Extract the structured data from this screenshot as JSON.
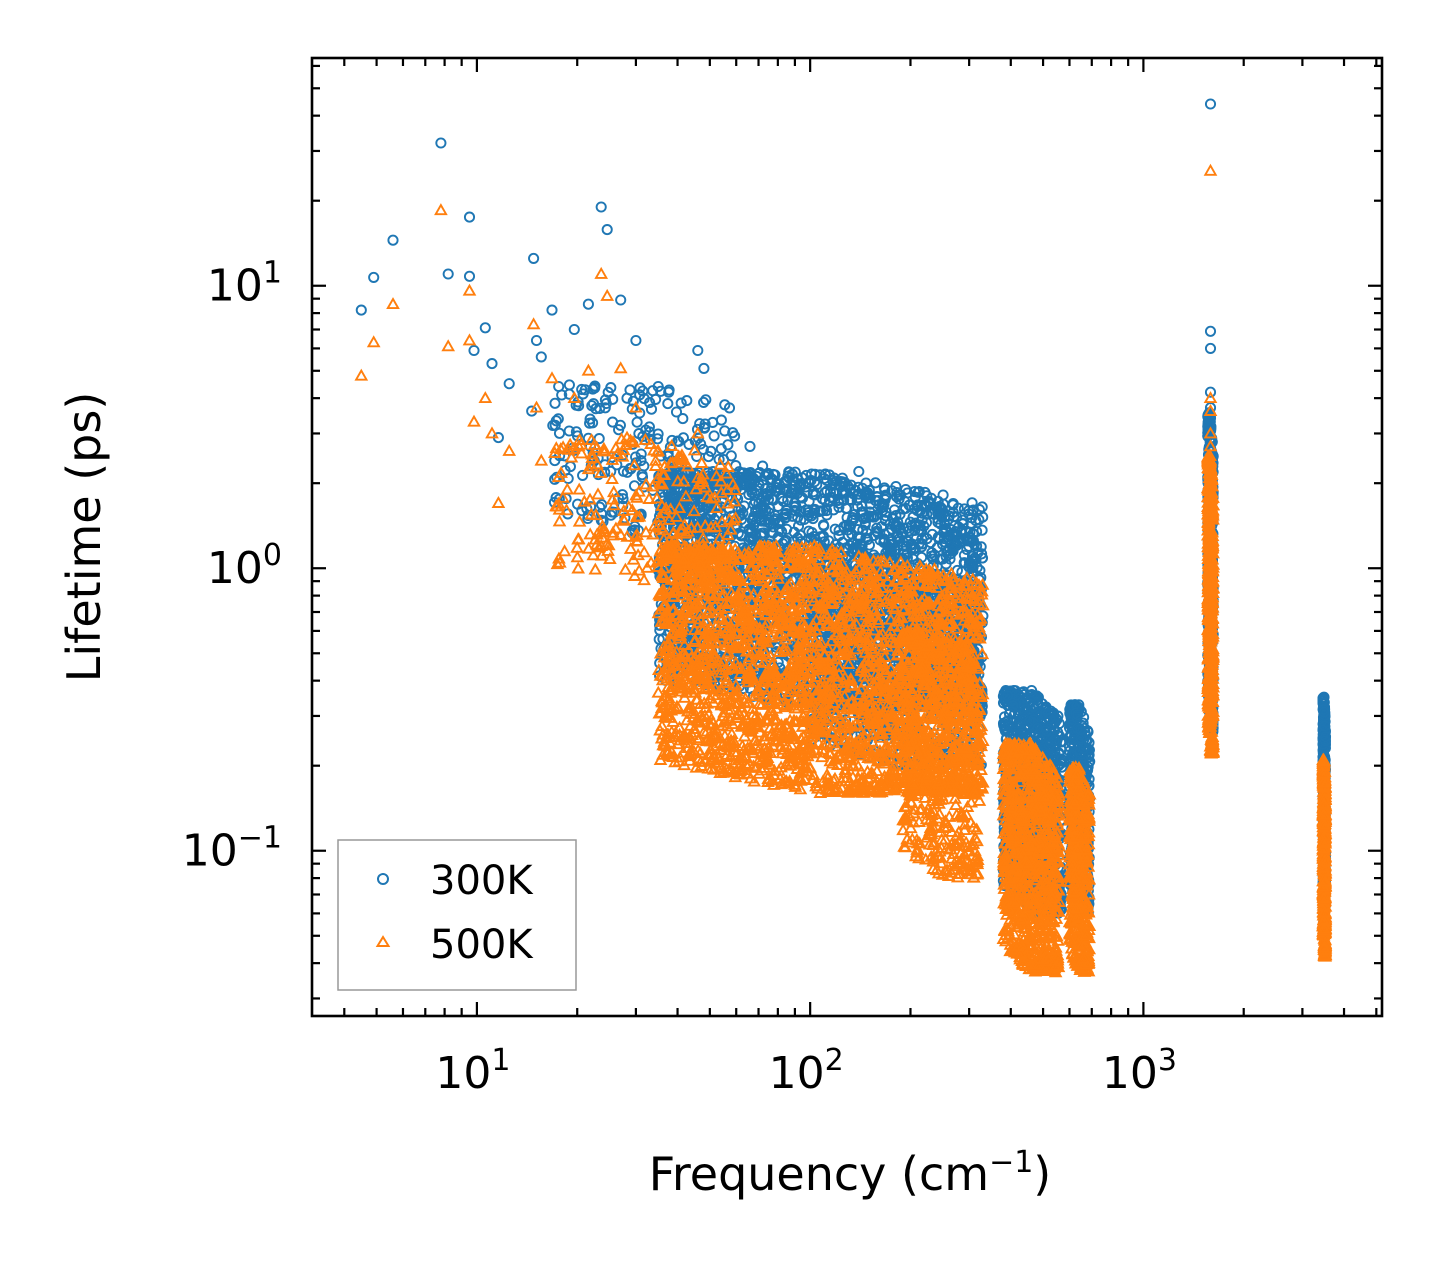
{
  "chart_data": {
    "type": "scatter",
    "xscale": "log",
    "yscale": "log",
    "xlim": [
      3.2,
      5200
    ],
    "ylim": [
      0.026,
      64
    ],
    "xlabel": "Frequency (cm⁻¹)",
    "xlabel_parts": {
      "main": "Frequency (cm",
      "sup": "−1",
      "close": ")"
    },
    "ylabel": "Lifetime (ps)",
    "x_ticks": [
      {
        "value": 10,
        "base": "10",
        "exp": "1"
      },
      {
        "value": 100,
        "base": "10",
        "exp": "2"
      },
      {
        "value": 1000,
        "base": "10",
        "exp": "3"
      }
    ],
    "y_ticks": [
      {
        "value": 0.1,
        "base": "10",
        "exp": "−1"
      },
      {
        "value": 1,
        "base": "10",
        "exp": "0"
      },
      {
        "value": 10,
        "base": "10",
        "exp": "1"
      }
    ],
    "legend_position": "bottom-left",
    "series": [
      {
        "name": "300K",
        "marker": "circle",
        "color": "#1f77b4",
        "points": [
          [
            4.5,
            8.2
          ],
          [
            4.9,
            10.7
          ],
          [
            5.6,
            14.5
          ],
          [
            7.8,
            32.0
          ],
          [
            8.2,
            11.0
          ],
          [
            9.5,
            17.5
          ],
          [
            9.5,
            10.8
          ],
          [
            9.8,
            5.9
          ],
          [
            10.6,
            7.1
          ],
          [
            11.1,
            5.3
          ],
          [
            11.6,
            2.9
          ],
          [
            12.5,
            4.5
          ],
          [
            14.8,
            12.5
          ],
          [
            14.6,
            3.6
          ],
          [
            15.1,
            6.4
          ],
          [
            15.6,
            5.6
          ],
          [
            16.8,
            8.2
          ],
          [
            16.9,
            3.2
          ],
          [
            17.6,
            4.4
          ],
          [
            18.3,
            2.5
          ],
          [
            19.6,
            7.0
          ],
          [
            21.6,
            8.6
          ],
          [
            23.6,
            19.0
          ],
          [
            24.6,
            15.8
          ],
          [
            27.0,
            8.9
          ],
          [
            30.0,
            6.4
          ],
          [
            35.0,
            4.4
          ],
          [
            46.0,
            5.9
          ],
          [
            48.0,
            5.1
          ],
          [
            58.0,
            2.5
          ],
          [
            62.0,
            1.9
          ],
          [
            66.0,
            2.7
          ],
          [
            72.0,
            2.3
          ],
          [
            85.0,
            1.6
          ],
          [
            98.0,
            1.85
          ],
          [
            112.0,
            1.6
          ],
          [
            128.0,
            1.85
          ],
          [
            140.0,
            2.2
          ],
          [
            165.0,
            1.6
          ],
          [
            182.0,
            1.4
          ],
          [
            196.0,
            1.0
          ],
          [
            205.0,
            0.82
          ],
          [
            213.0,
            0.71
          ],
          [
            232.0,
            0.88
          ],
          [
            246.0,
            0.62
          ],
          [
            270.0,
            0.52
          ],
          [
            292.0,
            0.4
          ],
          [
            312.0,
            0.31
          ],
          [
            322.0,
            0.27
          ]
        ],
        "clusters": [
          {
            "x_range": [
              17,
              60
            ],
            "y_range": [
              1.3,
              4.5
            ],
            "count": 240
          },
          {
            "x_range": [
              35,
              330
            ],
            "y_range": [
              0.32,
              2.2
            ],
            "count": 2600
          },
          {
            "x_range": [
              100,
              330
            ],
            "y_range": [
              0.2,
              1.0
            ],
            "count": 800
          },
          {
            "x_range": [
              380,
              570
            ],
            "y_range": [
              0.06,
              0.37
            ],
            "count": 900
          },
          {
            "x_range": [
              600,
              690
            ],
            "y_range": [
              0.06,
              0.33
            ],
            "count": 450
          },
          {
            "x_range": [
              1560,
              1620
            ],
            "y_range": [
              0.26,
              3.6
            ],
            "count": 500
          },
          {
            "x_range": [
              3460,
              3520
            ],
            "y_range": [
              0.05,
              0.35
            ],
            "count": 450
          }
        ],
        "column_peaks": [
          {
            "x": 1590,
            "values": [
              44.0,
              6.9,
              6.0,
              4.2,
              3.7,
              3.4
            ]
          }
        ]
      },
      {
        "name": "500K",
        "marker": "triangle",
        "color": "#ff7f0e",
        "points": [
          [
            4.5,
            4.8
          ],
          [
            4.9,
            6.3
          ],
          [
            5.6,
            8.6
          ],
          [
            7.8,
            18.5
          ],
          [
            8.2,
            6.1
          ],
          [
            9.5,
            6.4
          ],
          [
            9.5,
            9.6
          ],
          [
            9.8,
            3.3
          ],
          [
            10.6,
            4.0
          ],
          [
            11.1,
            3.0
          ],
          [
            11.6,
            1.7
          ],
          [
            12.5,
            2.6
          ],
          [
            14.8,
            7.3
          ],
          [
            15.1,
            3.7
          ],
          [
            15.6,
            2.4
          ],
          [
            16.8,
            4.7
          ],
          [
            17.6,
            2.1
          ],
          [
            19.6,
            4.0
          ],
          [
            21.6,
            5.0
          ],
          [
            23.6,
            11.0
          ],
          [
            24.6,
            9.2
          ],
          [
            27.0,
            5.1
          ],
          [
            30.0,
            3.7
          ],
          [
            35.0,
            2.6
          ],
          [
            46.0,
            3.0
          ],
          [
            52.0,
            1.4
          ],
          [
            66.0,
            1.0
          ],
          [
            85.0,
            0.85
          ],
          [
            98.0,
            1.0
          ],
          [
            112.0,
            0.82
          ],
          [
            128.0,
            0.94
          ],
          [
            140.0,
            1.1
          ],
          [
            182.0,
            0.75
          ],
          [
            196.0,
            0.58
          ],
          [
            230.0,
            0.48
          ],
          [
            270.0,
            0.35
          ],
          [
            292.0,
            0.23
          ],
          [
            310.0,
            0.16
          ],
          [
            322.0,
            0.15
          ],
          [
            302.0,
            0.085
          ]
        ],
        "clusters": [
          {
            "x_range": [
              17,
              60
            ],
            "y_range": [
              0.9,
              2.9
            ],
            "count": 240
          },
          {
            "x_range": [
              35,
              330
            ],
            "y_range": [
              0.16,
              1.2
            ],
            "count": 2600
          },
          {
            "x_range": [
              190,
              320
            ],
            "y_range": [
              0.08,
              0.6
            ],
            "count": 500
          },
          {
            "x_range": [
              380,
              560
            ],
            "y_range": [
              0.037,
              0.24
            ],
            "count": 900
          },
          {
            "x_range": [
              600,
              690
            ],
            "y_range": [
              0.037,
              0.2
            ],
            "count": 450
          },
          {
            "x_range": [
              1560,
              1620
            ],
            "y_range": [
              0.22,
              2.5
            ],
            "count": 500
          },
          {
            "x_range": [
              3460,
              3520
            ],
            "y_range": [
              0.042,
              0.21
            ],
            "count": 450
          }
        ],
        "column_peaks": [
          {
            "x": 1590,
            "values": [
              25.5,
              4.0,
              3.6,
              3.0,
              2.7
            ]
          }
        ]
      }
    ]
  }
}
